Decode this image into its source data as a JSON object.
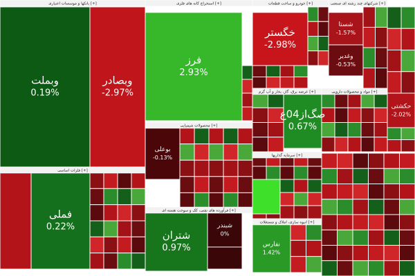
{
  "sectors": [
    {
      "title": "بانکها و موسسات اعتباری [+]"
    },
    {
      "title": "استخراج کانه های فلزی [+]"
    },
    {
      "title": "خودرو و ساخت قطعات [+]"
    },
    {
      "title": "شرکتهای چند رشته ای صنعتی [+]"
    },
    {
      "title": "فلزات اساسی [+]"
    },
    {
      "title": "محصولات شیمیایی [+]"
    },
    {
      "title": "فرآورده های نفتی، کک و سوخت هسته ای [+]"
    },
    {
      "title": "عرضه برق، گاز، بخار و آب گرم [+]"
    },
    {
      "title": "مواد و محصولات دارویی [+]"
    },
    {
      "title": "سرمایه گذاریها [+]"
    },
    {
      "title": "انبوه سازی، املاک و مستغلات [+]"
    }
  ],
  "tiles": [
    {
      "symbol": "وبملت",
      "change": "0.19%"
    },
    {
      "symbol": "وبصادر",
      "change": "-2.97%"
    },
    {
      "symbol": "فرز",
      "change": "2.93%"
    },
    {
      "symbol": "خگستر",
      "change": "-2.98%"
    },
    {
      "symbol": "شستا",
      "change": "-1.57%"
    },
    {
      "symbol": "وغدیر",
      "change": "-0.53%"
    },
    {
      "symbol": "صگ‌از04ع",
      "change": "0.67%"
    },
    {
      "symbol": "حکشتی",
      "change": "-2.02%"
    },
    {
      "symbol": "فملی",
      "change": "0.22%"
    },
    {
      "symbol": "بوعلی",
      "change": "-0.13%"
    },
    {
      "symbol": "شتران",
      "change": "0.97%"
    },
    {
      "symbol": "شبندر",
      "change": "0%"
    },
    {
      "symbol": "نفارس",
      "change": "1.42%"
    }
  ]
}
